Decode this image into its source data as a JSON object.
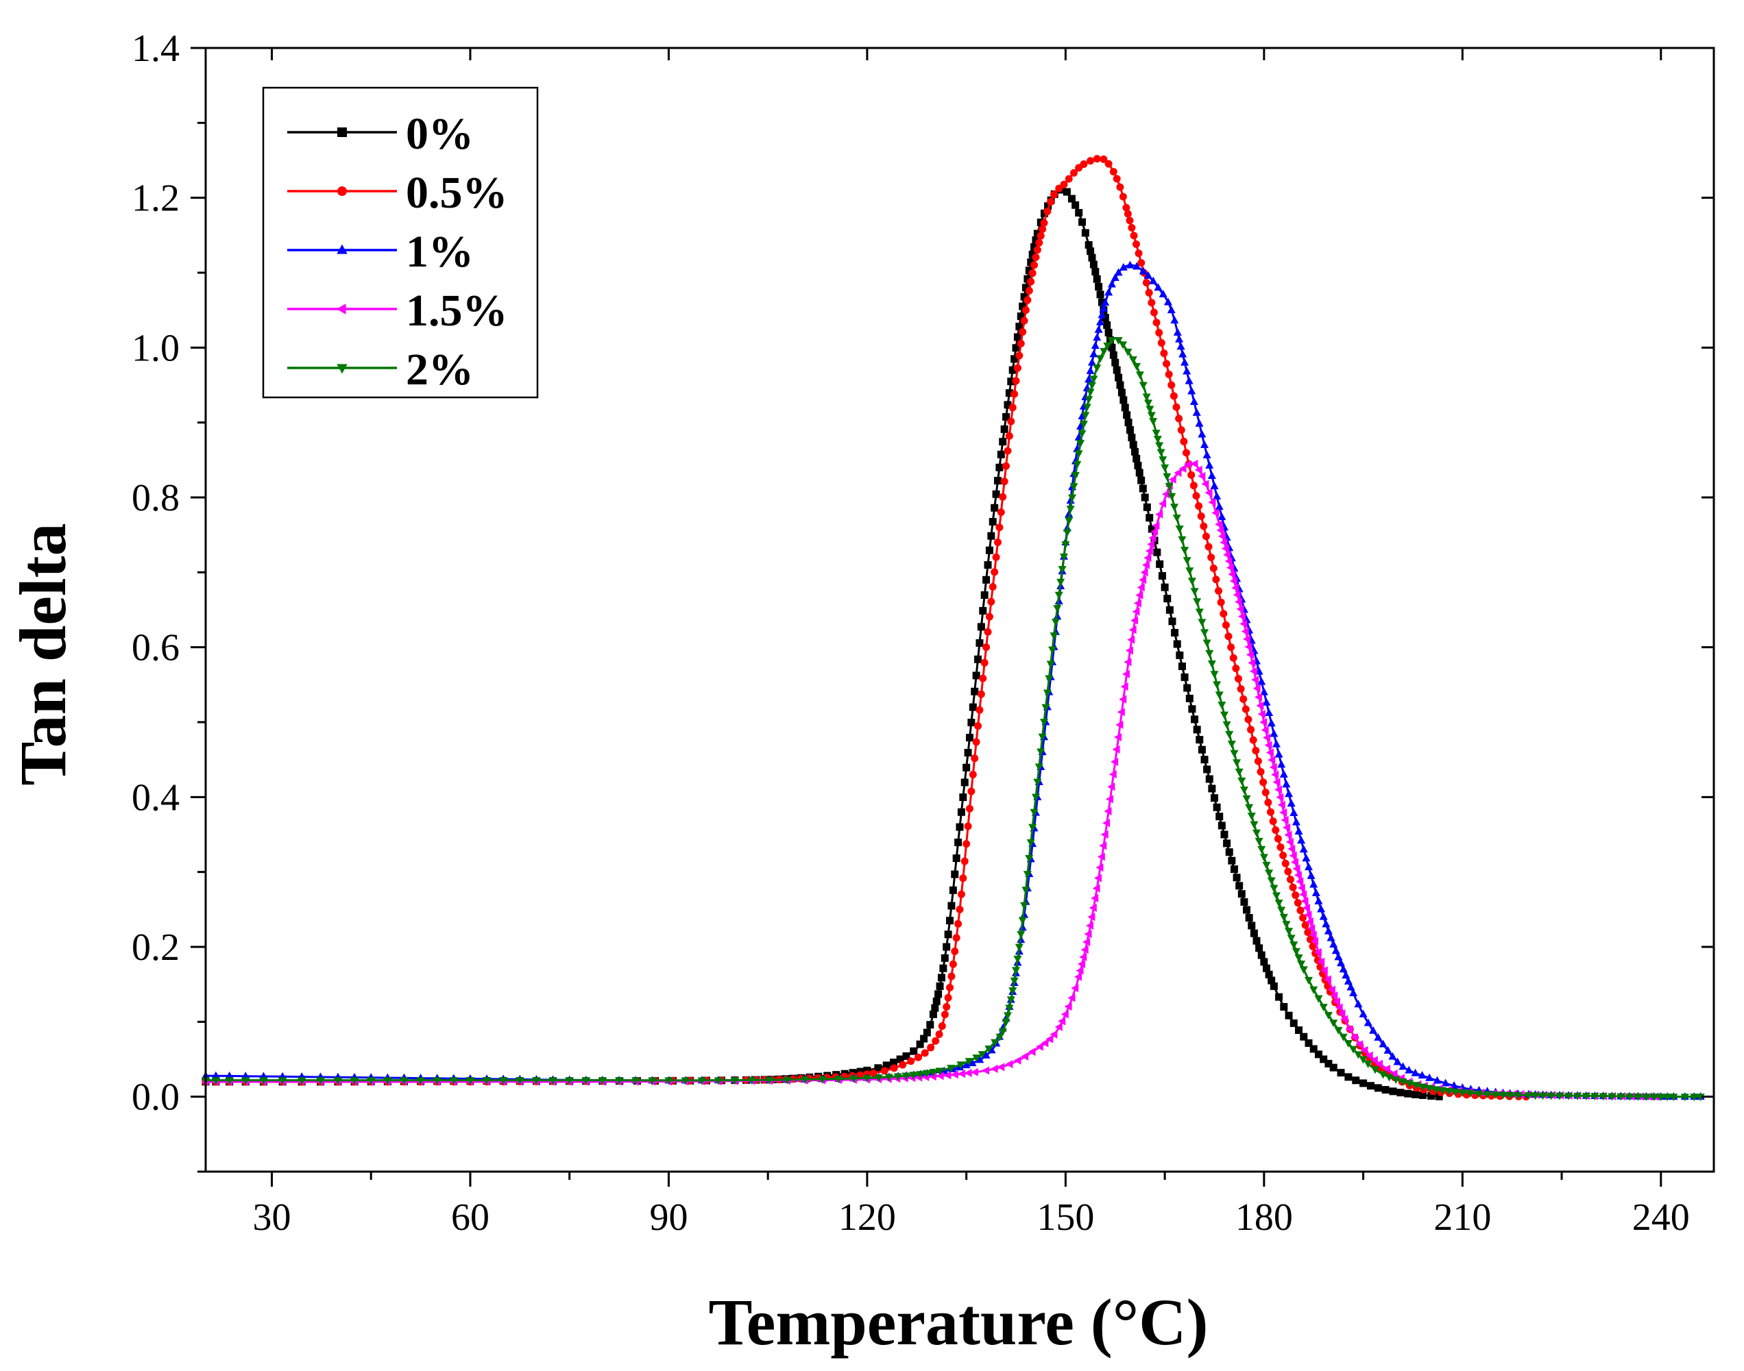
{
  "chart_data": {
    "type": "line",
    "title": "",
    "xlabel": "Temperature (°C)",
    "ylabel": "Tan delta",
    "xlim": [
      20,
      248
    ],
    "ylim": [
      -0.1,
      1.4
    ],
    "xticks": [
      30,
      60,
      90,
      120,
      150,
      180,
      210,
      240
    ],
    "yticks": [
      0.0,
      0.2,
      0.4,
      0.6,
      0.8,
      1.0,
      1.2,
      1.4
    ],
    "xtick_labels": [
      "30",
      "60",
      "90",
      "120",
      "150",
      "180",
      "210",
      "240"
    ],
    "ytick_labels": [
      "0.0",
      "0.2",
      "0.4",
      "0.6",
      "0.8",
      "1.0",
      "1.2",
      "1.4"
    ],
    "grid": false,
    "legend": "top-left",
    "series": [
      {
        "name": "0%",
        "color": "#000000",
        "marker": "square",
        "x": [
          20,
          40,
          60,
          80,
          100,
          110,
          120,
          125,
          128,
          130,
          132,
          134,
          136,
          138,
          140,
          142,
          144,
          146,
          148,
          149,
          150,
          152,
          154,
          156,
          158,
          160,
          162,
          165,
          168,
          171,
          174,
          177,
          180,
          183,
          186,
          189,
          192,
          195,
          198,
          201,
          204,
          207
        ],
        "y": [
          0.02,
          0.02,
          0.021,
          0.021,
          0.022,
          0.025,
          0.035,
          0.05,
          0.07,
          0.11,
          0.2,
          0.36,
          0.52,
          0.69,
          0.84,
          0.97,
          1.08,
          1.16,
          1.2,
          1.21,
          1.21,
          1.18,
          1.12,
          1.04,
          0.96,
          0.88,
          0.8,
          0.68,
          0.56,
          0.45,
          0.35,
          0.26,
          0.18,
          0.12,
          0.08,
          0.05,
          0.03,
          0.018,
          0.01,
          0.005,
          0.002,
          0.0
        ]
      },
      {
        "name": "0.5%",
        "color": "#ff0000",
        "marker": "circle",
        "x": [
          20,
          40,
          60,
          80,
          100,
          110,
          120,
          126,
          130,
          132,
          134,
          136,
          138,
          140,
          142,
          144,
          146,
          148,
          150,
          152,
          154,
          156,
          158,
          160,
          163,
          166,
          169,
          172,
          175,
          178,
          181,
          184,
          187,
          190,
          193,
          196,
          199,
          202,
          205,
          210,
          215,
          220
        ],
        "y": [
          0.02,
          0.02,
          0.02,
          0.021,
          0.022,
          0.024,
          0.03,
          0.045,
          0.07,
          0.12,
          0.25,
          0.43,
          0.6,
          0.76,
          0.92,
          1.05,
          1.14,
          1.2,
          1.22,
          1.24,
          1.25,
          1.25,
          1.22,
          1.16,
          1.06,
          0.95,
          0.83,
          0.72,
          0.6,
          0.49,
          0.38,
          0.29,
          0.21,
          0.14,
          0.09,
          0.05,
          0.03,
          0.015,
          0.008,
          0.003,
          0.001,
          0.0
        ]
      },
      {
        "name": "1%",
        "color": "#0000ff",
        "marker": "triangle-up",
        "x": [
          20,
          40,
          60,
          80,
          100,
          120,
          130,
          135,
          138,
          140,
          142,
          144,
          146,
          148,
          150,
          152,
          154,
          156,
          158,
          160,
          162,
          164,
          166,
          168,
          171,
          174,
          177,
          180,
          183,
          186,
          189,
          192,
          195,
          198,
          201,
          205,
          210,
          215,
          220,
          230,
          240,
          246
        ],
        "y": [
          0.028,
          0.026,
          0.024,
          0.022,
          0.022,
          0.025,
          0.032,
          0.042,
          0.055,
          0.08,
          0.14,
          0.26,
          0.42,
          0.58,
          0.74,
          0.88,
          0.98,
          1.06,
          1.1,
          1.11,
          1.1,
          1.08,
          1.05,
          0.98,
          0.87,
          0.76,
          0.65,
          0.54,
          0.43,
          0.33,
          0.24,
          0.17,
          0.11,
          0.07,
          0.04,
          0.025,
          0.012,
          0.006,
          0.003,
          0.001,
          0.0,
          0.0
        ]
      },
      {
        "name": "1.5%",
        "color": "#ff00ff",
        "marker": "triangle-left",
        "x": [
          20,
          40,
          60,
          80,
          100,
          120,
          130,
          138,
          142,
          145,
          148,
          150,
          152,
          154,
          156,
          158,
          160,
          162,
          164,
          166,
          168,
          169,
          170,
          172,
          174,
          176,
          178,
          180,
          182,
          184,
          186,
          188,
          190,
          193,
          196,
          199,
          202,
          206,
          212,
          220,
          230,
          240
        ],
        "y": [
          0.02,
          0.02,
          0.02,
          0.02,
          0.021,
          0.023,
          0.027,
          0.035,
          0.045,
          0.06,
          0.08,
          0.11,
          0.16,
          0.24,
          0.35,
          0.48,
          0.61,
          0.7,
          0.77,
          0.82,
          0.84,
          0.845,
          0.84,
          0.8,
          0.74,
          0.67,
          0.59,
          0.5,
          0.42,
          0.34,
          0.27,
          0.2,
          0.15,
          0.09,
          0.055,
          0.035,
          0.02,
          0.012,
          0.006,
          0.003,
          0.001,
          0.0
        ]
      },
      {
        "name": "2%",
        "color": "#007700",
        "marker": "triangle-down",
        "x": [
          20,
          40,
          60,
          80,
          100,
          120,
          130,
          136,
          139,
          141,
          143,
          145,
          147,
          149,
          151,
          153,
          155,
          157,
          158,
          159,
          161,
          163,
          165,
          168,
          171,
          174,
          177,
          180,
          183,
          186,
          189,
          192,
          195,
          198,
          202,
          206,
          210,
          215,
          220,
          230,
          240,
          246
        ],
        "y": [
          0.022,
          0.022,
          0.022,
          0.022,
          0.022,
          0.025,
          0.033,
          0.05,
          0.07,
          0.1,
          0.2,
          0.36,
          0.52,
          0.67,
          0.8,
          0.91,
          0.98,
          1.01,
          1.01,
          1.0,
          0.97,
          0.91,
          0.84,
          0.73,
          0.62,
          0.51,
          0.41,
          0.32,
          0.24,
          0.17,
          0.12,
          0.08,
          0.05,
          0.03,
          0.018,
          0.01,
          0.006,
          0.003,
          0.002,
          0.001,
          0.0,
          0.0
        ]
      }
    ]
  }
}
